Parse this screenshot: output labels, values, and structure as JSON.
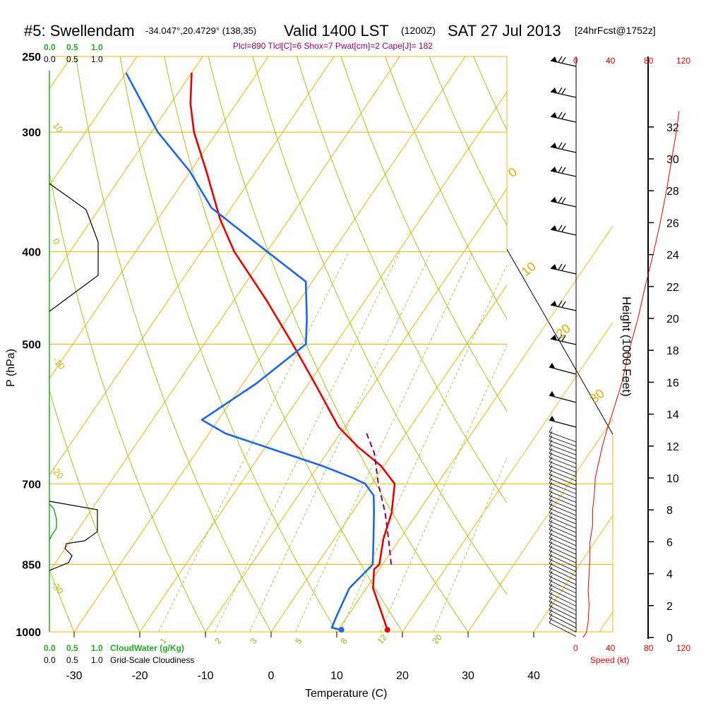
{
  "header": {
    "station": "#5: Swellendam",
    "coords": "-34.047°,20.4729° (138,35)",
    "valid": "Valid 1400 LST",
    "zulu": "(1200Z)",
    "date": "SAT 27 Jul 2013",
    "forecast": "[24hrFcst@1752z]",
    "indices": "Plcl=890 Tlcl[C]=6 Shox=7 Pwat[cm]=2 Cape[J]= 182"
  },
  "colors": {
    "isotherm": "#f0b400",
    "dry_adiabat": "#8fcc00",
    "mixing_ratio": "#99cc33",
    "temperature": "#ee0000",
    "dewpoint": "#1a66ee",
    "parcel": "#880055",
    "cloud": "#22aa22",
    "wind": "#000000"
  },
  "chart_data": {
    "type": "line",
    "title": "Skew-T sounding: #5: Swellendam, Valid 1400 LST SAT 27 Jul 2013",
    "xlabel": "Temperature (C)",
    "ylabel": "P (hPa)",
    "y2label": "Height (1000 Feet)",
    "x_ticks": [
      "-30",
      "-20",
      "-10",
      "0",
      "10",
      "20",
      "30",
      "40"
    ],
    "x_tick_values": [
      -30,
      -20,
      -10,
      0,
      10,
      20,
      30,
      40
    ],
    "pressure_ticks": [
      "250",
      "300",
      "400",
      "500",
      "700",
      "850",
      "1000"
    ],
    "pressure_values": [
      250,
      300,
      400,
      500,
      700,
      850,
      1000
    ],
    "height_ticks": [
      "0",
      "2",
      "4",
      "6",
      "8",
      "10",
      "12",
      "14",
      "16",
      "18",
      "20",
      "22",
      "24",
      "26",
      "28",
      "30",
      "32"
    ],
    "height_values": [
      0,
      2,
      4,
      6,
      8,
      10,
      12,
      14,
      16,
      18,
      20,
      22,
      24,
      26,
      28,
      30,
      32
    ],
    "isotherm_labels": [
      "-10",
      "0",
      "10",
      "20",
      "30"
    ],
    "dry_adiabat_labels": [
      "10",
      "0",
      "-10",
      "-20",
      "-30"
    ],
    "mixing_ratio_labels": [
      "1",
      "2",
      "3",
      "5",
      "8",
      "12",
      "20"
    ],
    "speed_ticks": [
      "0",
      "40",
      "80",
      "120"
    ],
    "speed_label": "Speed (kt)",
    "cloud_scale": [
      "0.0",
      "0.5",
      "1.0"
    ],
    "cloudwater_label": "CloudWater (g/Kg)",
    "cloudiness_label": "Grid-Scale Cloudiness",
    "series": [
      {
        "name": "Temperature",
        "p": [
          995,
          950,
          900,
          860,
          850,
          800,
          750,
          700,
          670,
          640,
          610,
          550,
          500,
          450,
          400,
          370,
          330,
          300,
          280,
          260
        ],
        "t": [
          17.5,
          14.5,
          11,
          9.2,
          9.5,
          7.5,
          6.0,
          3.5,
          -0.5,
          -6,
          -11,
          -19,
          -26.5,
          -35,
          -45,
          -50.5,
          -57.5,
          -63.5,
          -67,
          -70
        ]
      },
      {
        "name": "Dewpoint",
        "p": [
          995,
          990,
          960,
          900,
          850,
          800,
          750,
          720,
          700,
          690,
          670,
          620,
          600,
          550,
          500,
          470,
          430,
          400,
          360,
          330,
          300,
          260
        ],
        "t": [
          10.5,
          8.8,
          8.3,
          7.4,
          8.5,
          6.0,
          3.3,
          1.5,
          -1.0,
          -3.5,
          -9.5,
          -27.5,
          -32.5,
          -28,
          -24.5,
          -27,
          -31,
          -40,
          -53,
          -60,
          -69,
          -80
        ]
      },
      {
        "name": "Parcel",
        "p": [
          850,
          800,
          750,
          700,
          650,
          620
        ],
        "t": [
          11.3,
          8.3,
          5.0,
          1.0,
          -2.8,
          -6.0
        ]
      }
    ],
    "surface_points": [
      {
        "name": "Surface temperature",
        "p": 995,
        "t": 17.5
      },
      {
        "name": "Surface dewpoint",
        "p": 995,
        "t": 10.5
      }
    ],
    "wind_speed_profile": {
      "height_kft": [
        0,
        0.3,
        1,
        2,
        3,
        4,
        5,
        6,
        7,
        8,
        9,
        10,
        11,
        12,
        13,
        14,
        16,
        18,
        20,
        22,
        24,
        26,
        28,
        30,
        32,
        33
      ],
      "speed_kt": [
        6,
        10,
        12,
        13,
        12,
        13,
        14,
        14,
        17,
        17,
        19,
        20,
        24,
        28,
        33,
        39,
        50,
        58,
        68,
        76,
        85,
        93,
        100,
        106,
        112,
        114
      ]
    }
  }
}
